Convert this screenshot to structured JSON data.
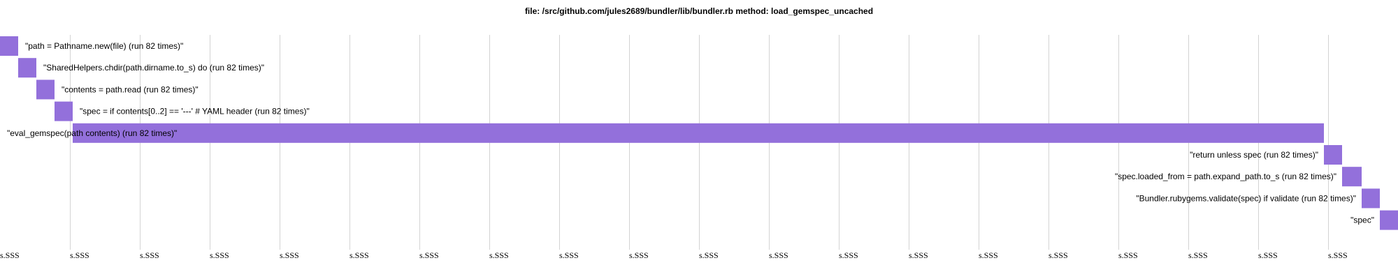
{
  "chart_data": {
    "type": "bar",
    "title": "file: /src/github.com/jules2689/bundler/lib/bundler.rb method: load_gemspec_uncached",
    "orientation": "horizontal-timeline",
    "bar_color": "#9370DB",
    "grid": true,
    "tick_label": "s.SSS",
    "tick_count": 20,
    "x_range": [
      0,
      100
    ],
    "bars": [
      {
        "label": "\"path = Pathname.new(file) (run 82 times)\"",
        "start": 0.0,
        "end": 1.3
      },
      {
        "label": "\"SharedHelpers.chdir(path.dirname.to_s) do (run 82 times)\"",
        "start": 1.3,
        "end": 2.6
      },
      {
        "label": "\"contents = path.read (run 82 times)\"",
        "start": 2.6,
        "end": 3.9
      },
      {
        "label": "\"spec = if contents[0..2] == '---' # YAML header (run 82 times)\"",
        "start": 3.9,
        "end": 5.2
      },
      {
        "label": "\"eval_gemspec(path contents) (run 82 times)\"",
        "start": 5.2,
        "end": 94.7
      },
      {
        "label": "\"return unless spec (run 82 times)\"",
        "start": 94.7,
        "end": 96.0
      },
      {
        "label": "\"spec.loaded_from = path.expand_path.to_s (run 82 times)\"",
        "start": 96.0,
        "end": 97.4
      },
      {
        "label": "\"Bundler.rubygems.validate(spec) if validate (run 82 times)\"",
        "start": 97.4,
        "end": 98.7
      },
      {
        "label": "\"spec\"",
        "start": 98.7,
        "end": 100.0
      }
    ]
  }
}
